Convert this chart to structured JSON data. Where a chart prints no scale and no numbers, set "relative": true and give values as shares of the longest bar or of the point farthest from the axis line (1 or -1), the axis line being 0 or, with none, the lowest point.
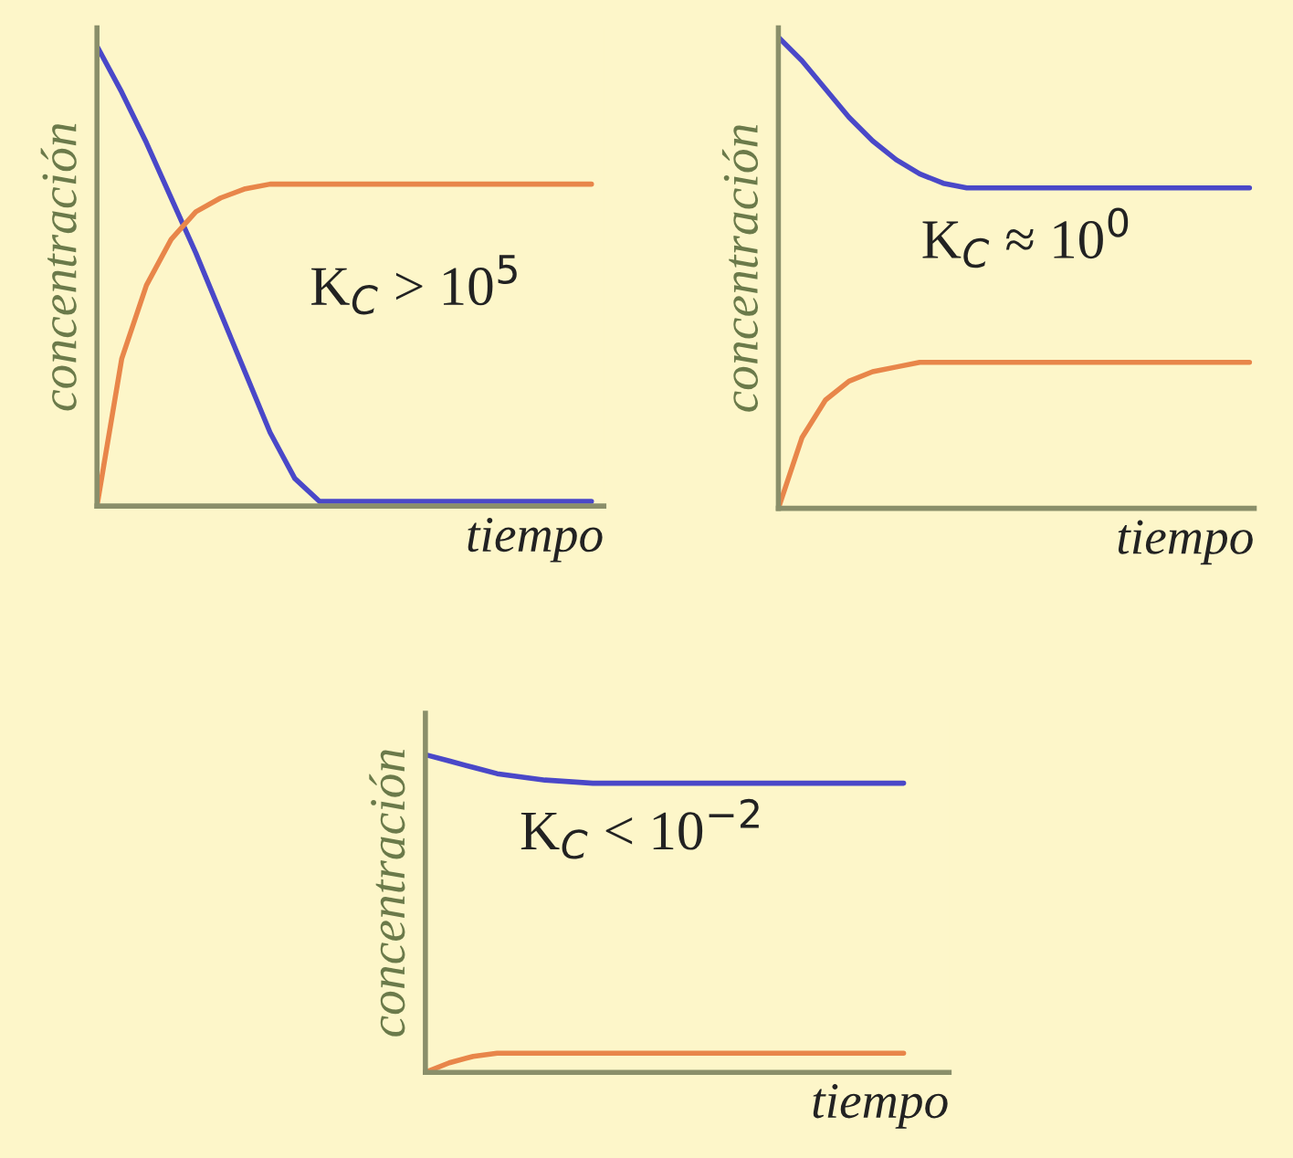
{
  "chart_data": [
    {
      "type": "line",
      "relative": true,
      "xlabel": "tiempo",
      "ylabel": "concentración",
      "annotations": [
        "K$_{C}$ > 10$^{5}$"
      ],
      "categories": [
        null,
        null,
        null,
        null,
        null,
        null,
        null,
        null,
        null,
        null,
        null,
        null,
        null,
        null,
        null,
        null,
        null,
        null,
        null,
        null,
        null
      ],
      "series": [
        {
          "color": "#4a48c8",
          "values": [
            1.0,
            0.9,
            0.79,
            0.67,
            0.55,
            0.42,
            0.29,
            0.16,
            0.06,
            0.01,
            0.01,
            0.01,
            0.01,
            0.01,
            0.01,
            0.01,
            0.01,
            0.01,
            0.01,
            0.01,
            0.01
          ]
        },
        {
          "color": "#e8864a",
          "values": [
            0,
            0.32,
            0.48,
            0.58,
            0.64,
            0.67,
            0.69,
            0.7,
            0.7,
            0.7,
            0.7,
            0.7,
            0.7,
            0.7,
            0.7,
            0.7,
            0.7,
            0.7,
            0.7,
            0.7,
            0.7
          ]
        }
      ]
    },
    {
      "type": "line",
      "relative": true,
      "xlabel": "tiempo",
      "ylabel": "concentración",
      "annotations": [
        "K$_{C}$ ≈ 10$^{0}$"
      ],
      "categories": [
        null,
        null,
        null,
        null,
        null,
        null,
        null,
        null,
        null,
        null,
        null,
        null,
        null,
        null,
        null,
        null,
        null,
        null,
        null,
        null,
        null
      ],
      "series": [
        {
          "color": "#4a48c8",
          "values": [
            1.0,
            0.95,
            0.89,
            0.83,
            0.78,
            0.74,
            0.71,
            0.69,
            0.68,
            0.68,
            0.68,
            0.68,
            0.68,
            0.68,
            0.68,
            0.68,
            0.68,
            0.68,
            0.68,
            0.68,
            0.68
          ]
        },
        {
          "color": "#e8864a",
          "values": [
            0,
            0.15,
            0.23,
            0.27,
            0.29,
            0.3,
            0.31,
            0.31,
            0.31,
            0.31,
            0.31,
            0.31,
            0.31,
            0.31,
            0.31,
            0.31,
            0.31,
            0.31,
            0.31,
            0.31,
            0.31
          ]
        }
      ]
    },
    {
      "type": "line",
      "relative": true,
      "xlabel": "tiempo",
      "ylabel": "concentración",
      "annotations": [
        "K$_{C}$ < 10$^{−2}$"
      ],
      "categories": [
        null,
        null,
        null,
        null,
        null,
        null,
        null,
        null,
        null,
        null,
        null,
        null,
        null,
        null,
        null,
        null,
        null,
        null,
        null,
        null,
        null
      ],
      "series": [
        {
          "color": "#4a48c8",
          "values": [
            1.0,
            0.98,
            0.96,
            0.94,
            0.93,
            0.92,
            0.915,
            0.91,
            0.91,
            0.91,
            0.91,
            0.91,
            0.91,
            0.91,
            0.91,
            0.91,
            0.91,
            0.91,
            0.91,
            0.91,
            0.91
          ]
        },
        {
          "color": "#e8864a",
          "values": [
            0,
            0.03,
            0.05,
            0.06,
            0.06,
            0.06,
            0.06,
            0.06,
            0.06,
            0.06,
            0.06,
            0.06,
            0.06,
            0.06,
            0.06,
            0.06,
            0.06,
            0.06,
            0.06,
            0.06,
            0.06
          ]
        }
      ]
    }
  ]
}
